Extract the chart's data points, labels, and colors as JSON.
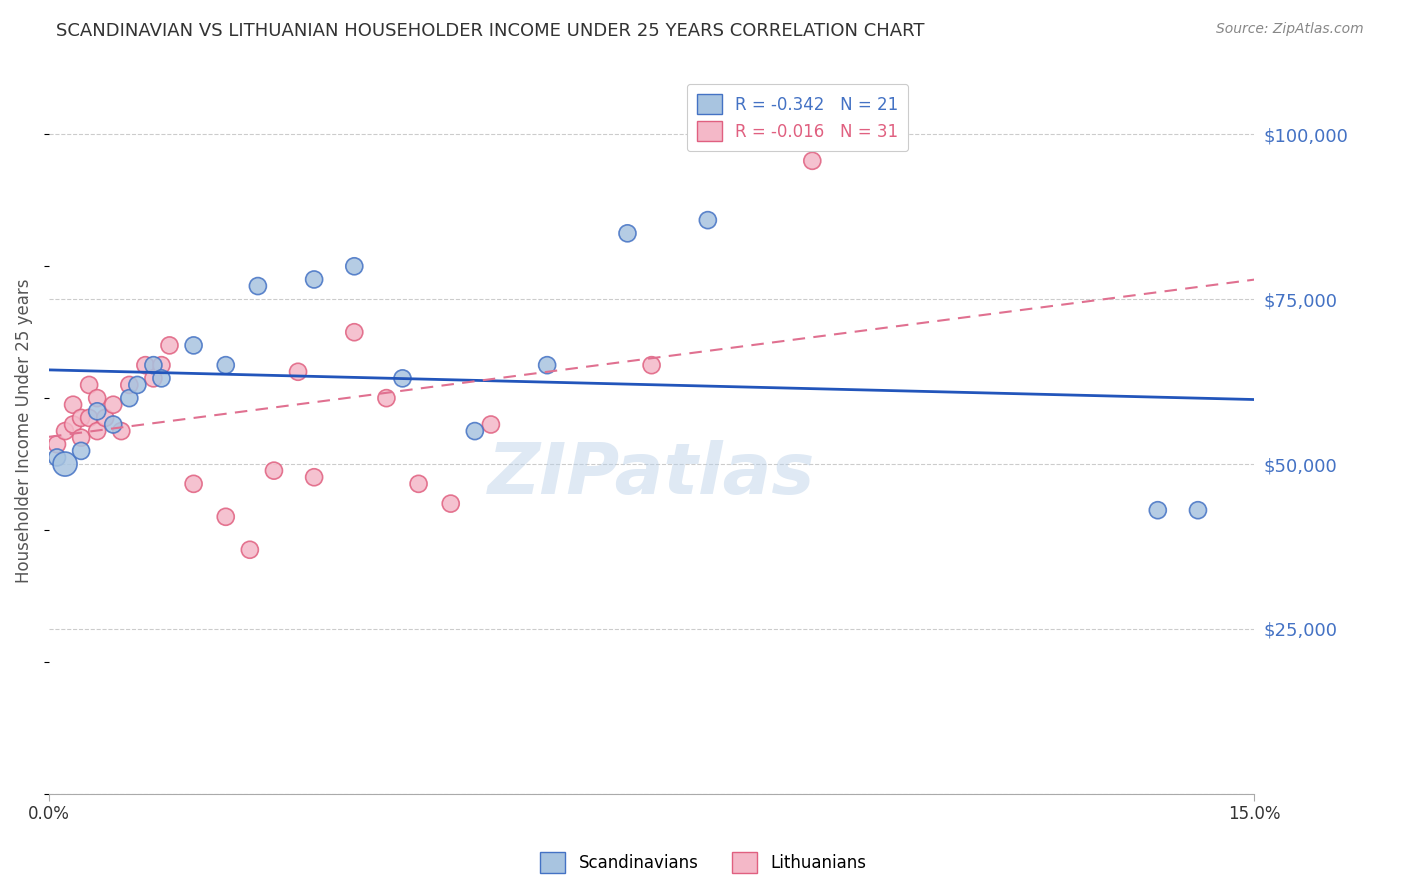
{
  "title": "SCANDINAVIAN VS LITHUANIAN HOUSEHOLDER INCOME UNDER 25 YEARS CORRELATION CHART",
  "source": "Source: ZipAtlas.com",
  "ylabel": "Householder Income Under 25 years",
  "xlim": [
    0.0,
    0.15
  ],
  "ylim": [
    0,
    110000
  ],
  "yticks": [
    0,
    25000,
    50000,
    75000,
    100000
  ],
  "ytick_labels": [
    "",
    "$25,000",
    "$50,000",
    "$75,000",
    "$100,000"
  ],
  "background_color": "#ffffff",
  "grid_color": "#cccccc",
  "title_color": "#333333",
  "axis_label_color": "#555555",
  "right_tick_color": "#4472c4",
  "legend_blue_label": "R = -0.342   N = 21",
  "legend_pink_label": "R = -0.016   N = 31",
  "scandinavian_color": "#a8c4e0",
  "scandinavian_edge": "#4472c4",
  "lithuanian_color": "#f4b8c8",
  "lithuanian_edge": "#e06080",
  "trend_blue": "#2255bb",
  "trend_pink": "#e07090",
  "watermark": "ZIPatlas",
  "scand_x": [
    0.001,
    0.002,
    0.004,
    0.006,
    0.008,
    0.01,
    0.011,
    0.013,
    0.014,
    0.018,
    0.022,
    0.026,
    0.033,
    0.038,
    0.044,
    0.053,
    0.062,
    0.072,
    0.082,
    0.138,
    0.143
  ],
  "scand_y": [
    51000,
    50000,
    52000,
    58000,
    56000,
    60000,
    62000,
    65000,
    63000,
    68000,
    65000,
    77000,
    78000,
    80000,
    63000,
    55000,
    65000,
    85000,
    87000,
    43000,
    43000
  ],
  "scand_size": [
    150,
    300,
    150,
    150,
    150,
    150,
    150,
    150,
    150,
    150,
    150,
    150,
    150,
    150,
    150,
    150,
    150,
    150,
    150,
    150,
    150
  ],
  "lith_x": [
    0.001,
    0.002,
    0.003,
    0.003,
    0.004,
    0.004,
    0.005,
    0.005,
    0.006,
    0.006,
    0.007,
    0.008,
    0.009,
    0.01,
    0.012,
    0.013,
    0.014,
    0.015,
    0.018,
    0.022,
    0.025,
    0.028,
    0.031,
    0.033,
    0.038,
    0.042,
    0.046,
    0.05,
    0.055,
    0.075,
    0.095
  ],
  "lith_y": [
    53000,
    55000,
    56000,
    59000,
    57000,
    54000,
    57000,
    62000,
    55000,
    60000,
    57000,
    59000,
    55000,
    62000,
    65000,
    63000,
    65000,
    68000,
    47000,
    42000,
    37000,
    49000,
    64000,
    48000,
    70000,
    60000,
    47000,
    44000,
    56000,
    65000,
    96000
  ],
  "lith_size": [
    150,
    150,
    150,
    150,
    150,
    150,
    150,
    150,
    150,
    150,
    150,
    150,
    150,
    150,
    150,
    150,
    150,
    150,
    150,
    150,
    150,
    150,
    150,
    150,
    150,
    150,
    150,
    150,
    150,
    150,
    150
  ]
}
